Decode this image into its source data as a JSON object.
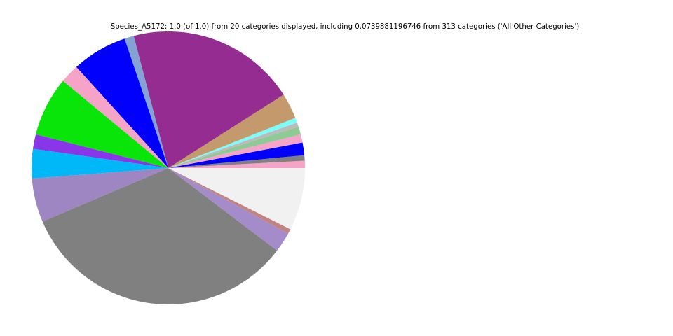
{
  "title": "Species_A5172: 1.0 (of 1.0) from 20 categories displayed, including 0.0739881196746 from 313 categories ('All Other Categories')",
  "background_color": "#ffffff",
  "chart_data": {
    "type": "pie",
    "title": "Species_A5172: 1.0 (of 1.0) from 20 categories displayed, including 0.0739881196746 from 313 categories ('All Other Categories')",
    "total": 1.0,
    "categories_displayed": 20,
    "all_other_categories": {
      "label": "All Other Categories",
      "value": 0.0739881196746,
      "source_category_count": 313
    },
    "start_angle_deg": 0,
    "direction": "counterclockwise",
    "legend": "none",
    "labels_on_slices": "none",
    "segments": [
      {
        "label": "",
        "value": 0.0086,
        "color": "#F5A3C7"
      },
      {
        "label": "",
        "value": 0.0064,
        "color": "#808080"
      },
      {
        "label": "",
        "value": 0.015,
        "color": "#0000FC"
      },
      {
        "label": "",
        "value": 0.0097,
        "color": "#F5A3C7"
      },
      {
        "label": "",
        "value": 0.0094,
        "color": "#8FC996"
      },
      {
        "label": "",
        "value": 0.005,
        "color": "#BBBBBB"
      },
      {
        "label": "",
        "value": 0.0058,
        "color": "#7DFCFC"
      },
      {
        "label": "",
        "value": 0.0303,
        "color": "#C49A6C"
      },
      {
        "label": "",
        "value": 0.2003,
        "color": "#952C92"
      },
      {
        "label": "",
        "value": 0.0111,
        "color": "#84A3D4"
      },
      {
        "label": "",
        "value": 0.0656,
        "color": "#0000FC"
      },
      {
        "label": "",
        "value": 0.0225,
        "color": "#F5A3C7"
      },
      {
        "label": "",
        "value": 0.0703,
        "color": "#09E509"
      },
      {
        "label": "",
        "value": 0.0172,
        "color": "#8A35E8"
      },
      {
        "label": "",
        "value": 0.0347,
        "color": "#00B8F8"
      },
      {
        "label": "",
        "value": 0.0519,
        "color": "#9E86C3"
      },
      {
        "label": "",
        "value": 0.3322,
        "color": "#808080"
      },
      {
        "label": "",
        "value": 0.0236,
        "color": "#A48BC9"
      },
      {
        "label": "",
        "value": 0.0058,
        "color": "#C28383"
      },
      {
        "label": "All Other Categories",
        "value": 0.0739881196746,
        "color": "#F1F1F1"
      }
    ]
  }
}
